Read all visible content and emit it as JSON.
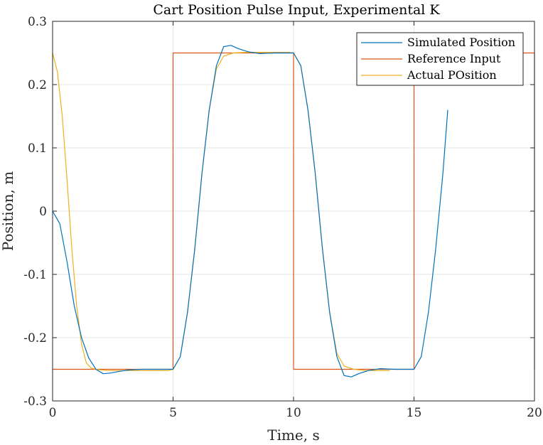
{
  "chart_data": {
    "type": "line",
    "title": "Cart Position Pulse Input, Experimental K",
    "xlabel": "Time, s",
    "ylabel": "Position, m",
    "xlim": [
      0,
      20
    ],
    "ylim": [
      -0.3,
      0.3
    ],
    "xticks": [
      "0",
      "5",
      "10",
      "15",
      "20"
    ],
    "yticks": [
      "-0.3",
      "-0.2",
      "-0.1",
      "0",
      "0.1",
      "0.2",
      "0.3"
    ],
    "grid": true,
    "legend_position": "top-right",
    "series": [
      {
        "name": "Simulated Position",
        "color": "#0072BD",
        "x": [
          0,
          0.3,
          0.6,
          0.9,
          1.2,
          1.5,
          1.8,
          2.1,
          2.4,
          2.8,
          3.2,
          3.7,
          4.2,
          4.6,
          5.0,
          5.3,
          5.6,
          5.9,
          6.2,
          6.5,
          6.8,
          7.1,
          7.4,
          7.7,
          8.1,
          8.6,
          9.2,
          9.6,
          10.0,
          10.3,
          10.6,
          10.9,
          11.2,
          11.5,
          11.8,
          12.1,
          12.4,
          12.7,
          13.1,
          13.6,
          14.2,
          14.6,
          15.0,
          15.3,
          15.6,
          15.9,
          16.2,
          16.4
        ],
        "y": [
          0,
          -0.02,
          -0.08,
          -0.15,
          -0.2,
          -0.232,
          -0.25,
          -0.257,
          -0.256,
          -0.253,
          -0.251,
          -0.25,
          -0.25,
          -0.25,
          -0.25,
          -0.23,
          -0.16,
          -0.06,
          0.06,
          0.16,
          0.23,
          0.26,
          0.262,
          0.257,
          0.252,
          0.249,
          0.25,
          0.25,
          0.25,
          0.23,
          0.16,
          0.06,
          -0.06,
          -0.16,
          -0.23,
          -0.26,
          -0.262,
          -0.257,
          -0.252,
          -0.249,
          -0.25,
          -0.25,
          -0.25,
          -0.23,
          -0.16,
          -0.06,
          0.06,
          0.16
        ]
      },
      {
        "name": "Reference Input",
        "color": "#D95319",
        "x": [
          0,
          5,
          5,
          10,
          10,
          15,
          15,
          20,
          20
        ],
        "y": [
          -0.25,
          -0.25,
          0.25,
          0.25,
          -0.25,
          -0.25,
          0.25,
          0.25,
          -0.25
        ]
      },
      {
        "name": "Actual POsition",
        "color": "#EDB120",
        "x": [
          0,
          0.2,
          0.4,
          0.6,
          0.8,
          1.0,
          1.2,
          1.4,
          1.6,
          1.8,
          2.0,
          2.3,
          2.7,
          3.2,
          4.0,
          4.8,
          5.0,
          5.3,
          5.6,
          5.9,
          6.2,
          6.5,
          6.8,
          7.1,
          7.5,
          8.0,
          9.0,
          9.8,
          10.0,
          10.3,
          10.6,
          10.9,
          11.2,
          11.5,
          11.8,
          12.1,
          12.5,
          13.0,
          13.6,
          14.0
        ],
        "y": [
          0.25,
          0.22,
          0.15,
          0.05,
          -0.06,
          -0.15,
          -0.21,
          -0.24,
          -0.248,
          -0.25,
          -0.251,
          -0.252,
          -0.252,
          -0.252,
          -0.252,
          -0.252,
          -0.25,
          -0.23,
          -0.16,
          -0.06,
          0.06,
          0.16,
          0.225,
          0.245,
          0.25,
          0.251,
          0.251,
          0.251,
          0.25,
          0.23,
          0.16,
          0.06,
          -0.06,
          -0.16,
          -0.225,
          -0.245,
          -0.25,
          -0.252,
          -0.252,
          -0.252
        ]
      }
    ]
  }
}
